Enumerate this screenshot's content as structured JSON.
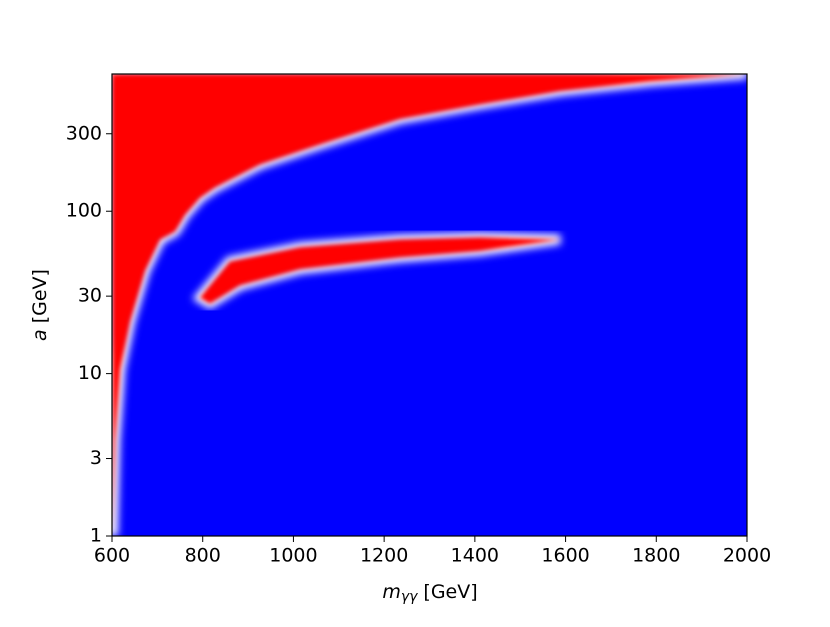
{
  "chart_data": {
    "type": "heatmap",
    "xlabel": {
      "symbol": "m",
      "subscript": "γγ",
      "unit": "[GeV]"
    },
    "ylabel": {
      "symbol": "a",
      "unit": "[GeV]"
    },
    "xlim": [
      600,
      2000
    ],
    "xticks": [
      600,
      800,
      1000,
      1200,
      1400,
      1600,
      1800,
      2000
    ],
    "ylim": [
      1,
      700
    ],
    "yticks": [
      1,
      3,
      10,
      30,
      100,
      300
    ],
    "ylog": true,
    "background": "#0000ff",
    "regions": [
      {
        "color": "#ff0000",
        "x": [
          600,
          602,
          607,
          618,
          640,
          673,
          706,
          739,
          761,
          794,
          827,
          926,
          1059,
          1235,
          1411,
          1588,
          1786,
          2000
        ],
        "y": [
          700,
          1,
          3.9,
          10.6,
          21,
          43,
          67,
          75,
          95,
          121,
          140,
          194,
          258,
          370,
          455,
          550,
          630,
          700
        ]
      },
      {
        "color": "#ff0000",
        "x": [
          794,
          860,
          1015,
          1235,
          1411,
          1588,
          1411,
          1235,
          1015,
          882,
          816
        ],
        "y": [
          29.4,
          49,
          60,
          67,
          69,
          67,
          57,
          52,
          44,
          35,
          27
        ]
      }
    ]
  }
}
